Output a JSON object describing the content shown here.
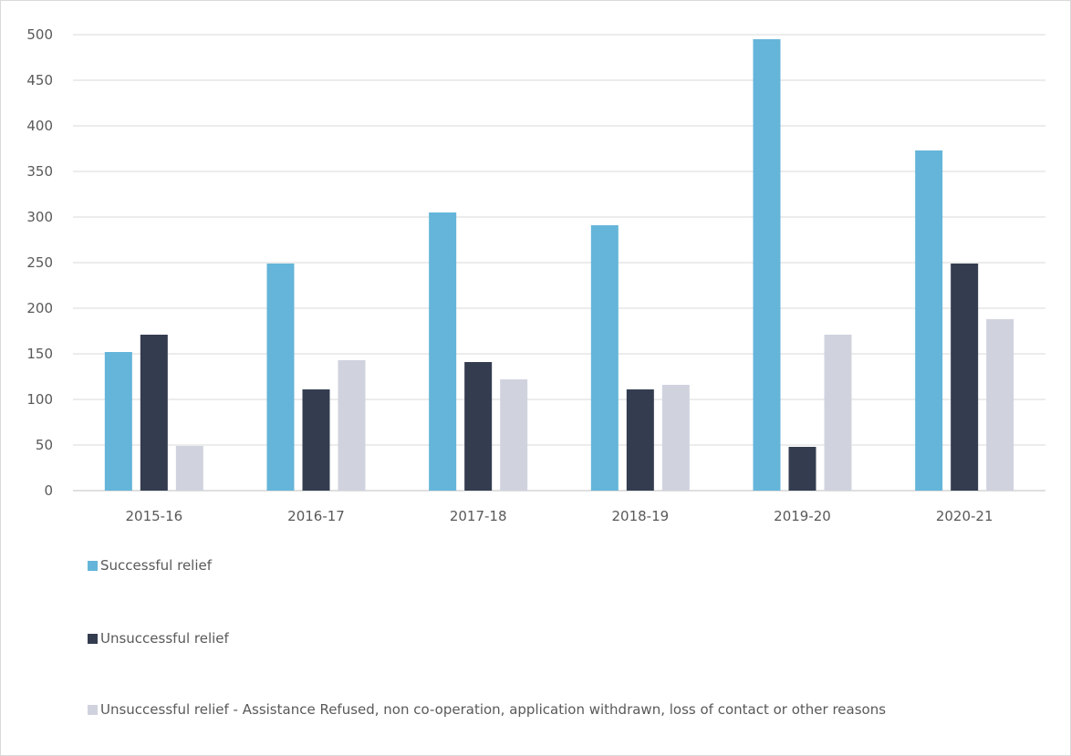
{
  "chart_data": {
    "type": "bar",
    "title": "",
    "xlabel": "",
    "ylabel": "",
    "ylim": [
      0,
      500
    ],
    "yticks": [
      0,
      50,
      100,
      150,
      200,
      250,
      300,
      350,
      400,
      450,
      500
    ],
    "grid": true,
    "legend_position": "bottom",
    "categories": [
      "2015-16",
      "2016-17",
      "2017-18",
      "2018-19",
      "2019-20",
      "2020-21"
    ],
    "series": [
      {
        "name": "Successful relief",
        "color": "#64b5d9",
        "values": [
          152,
          249,
          305,
          291,
          495,
          373
        ]
      },
      {
        "name": "Unsuccessful relief",
        "color": "#343d4f",
        "values": [
          171,
          111,
          141,
          111,
          48,
          249
        ]
      },
      {
        "name": "Unsuccessful relief - Assistance Refused, non co-operation, application withdrawn, loss of contact or other reasons",
        "color": "#d0d3de",
        "values": [
          49,
          143,
          122,
          116,
          171,
          188
        ]
      }
    ]
  }
}
